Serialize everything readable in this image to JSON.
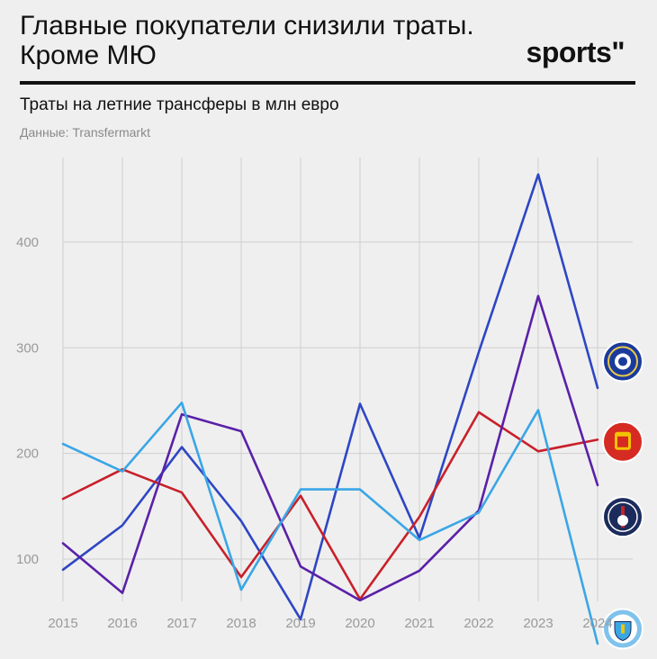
{
  "header": {
    "title": "Главные покупатели снизили траты. Кроме МЮ",
    "brand": "sports\"",
    "subtitle": "Траты на летние трансферы в млн евро",
    "source": "Данные: Transfermarkt"
  },
  "chart_data": {
    "type": "line",
    "x": [
      2015,
      2016,
      2017,
      2018,
      2019,
      2020,
      2021,
      2022,
      2023,
      2024
    ],
    "xlim": [
      2015,
      2024
    ],
    "ylim": [
      60,
      480
    ],
    "yticks": [
      100,
      200,
      300,
      400
    ],
    "grid": true,
    "series": [
      {
        "club": "chelsea",
        "color": "#2e46c4",
        "values": [
          90,
          132,
          206,
          136,
          43,
          247,
          120,
          296,
          464,
          262
        ]
      },
      {
        "club": "manchester-united",
        "color": "#c8202a",
        "values": [
          157,
          185,
          163,
          83,
          160,
          62,
          140,
          239,
          202,
          213
        ]
      },
      {
        "club": "psg",
        "color": "#5a20a8",
        "values": [
          115,
          68,
          237,
          221,
          93,
          61,
          89,
          146,
          349,
          170
        ]
      },
      {
        "club": "manchester-city",
        "color": "#3aa6e6",
        "values": [
          209,
          183,
          248,
          71,
          166,
          166,
          118,
          144,
          241,
          20
        ]
      }
    ],
    "end_markers": [
      {
        "club": "chelsea",
        "icon": "chelsea-crest-icon",
        "fill": "#1a3a9c",
        "y_value": 287
      },
      {
        "club": "manchester-united",
        "icon": "man-utd-crest-icon",
        "fill": "#d62b22",
        "y_value": 211
      },
      {
        "club": "psg",
        "icon": "psg-crest-icon",
        "fill": "#1b2b5c",
        "y_value": 140
      },
      {
        "club": "manchester-city",
        "icon": "man-city-crest-icon",
        "fill": "#7fc2ec",
        "y_value": 34
      }
    ]
  }
}
